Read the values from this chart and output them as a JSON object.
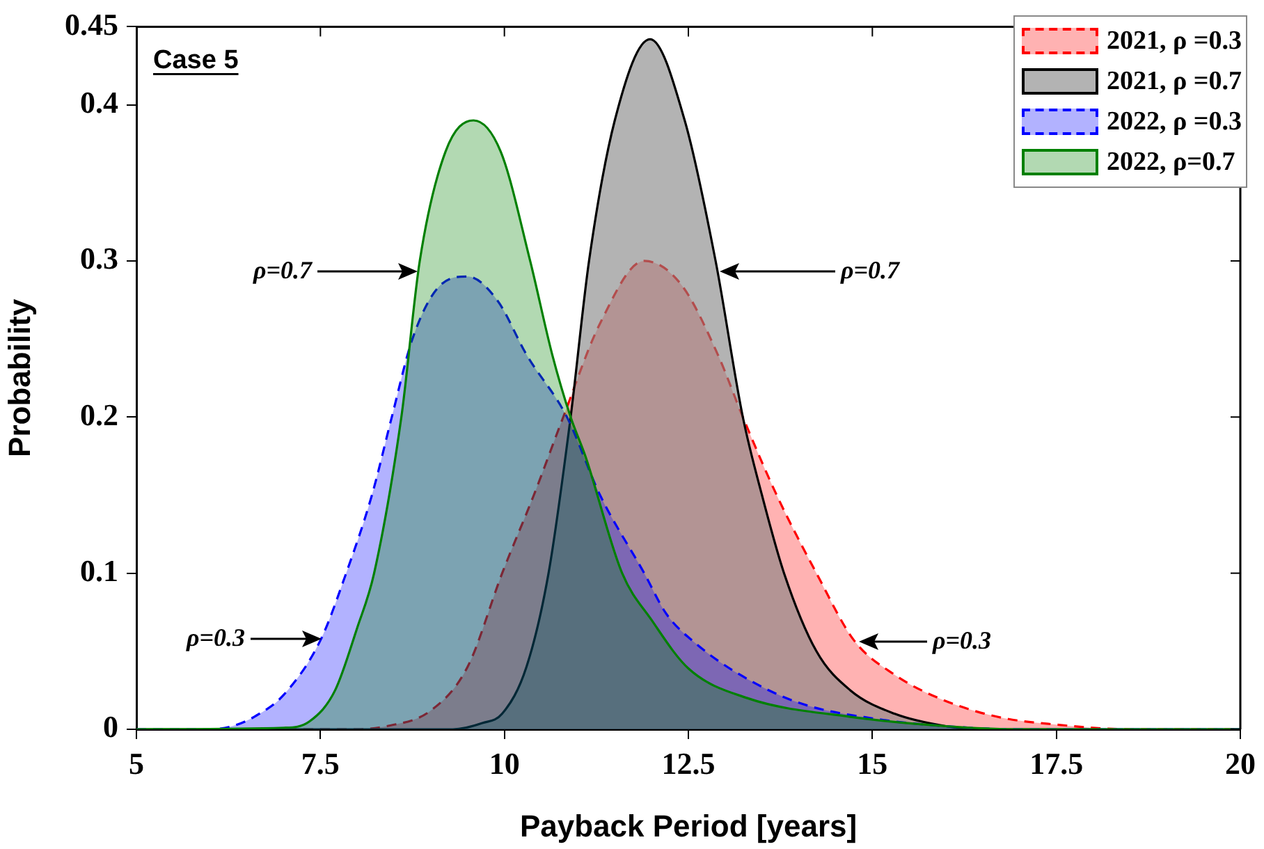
{
  "chart_data": {
    "type": "area",
    "xlabel": "Payback Period [years]",
    "ylabel": "Probability",
    "xlim": [
      5,
      20
    ],
    "xticks": [
      5,
      7.5,
      10,
      12.5,
      15,
      17.5,
      20
    ],
    "ylim": [
      0,
      0.45
    ],
    "yticks": [
      0,
      0.1,
      0.2,
      0.3,
      0.4,
      0.45
    ],
    "legend": "top right",
    "grid": false,
    "series": [
      {
        "name": "2021, ρ =0.3",
        "color": "#ff0000",
        "line_style": "dashed",
        "x": [
          5,
          8,
          8.4,
          9,
          9.5,
          9.97,
          10.4,
          10.8,
          11.3,
          11.9,
          12.4,
          12.9,
          13.24,
          13.7,
          14.24,
          14.75,
          15.3,
          15.9,
          16.7,
          17.5,
          18.5,
          20
        ],
        "values": [
          0,
          0,
          0.002,
          0.012,
          0.04,
          0.1,
          0.15,
          0.2,
          0.26,
          0.3,
          0.285,
          0.24,
          0.2,
          0.15,
          0.1,
          0.057,
          0.035,
          0.02,
          0.008,
          0.003,
          0,
          0
        ]
      },
      {
        "name": "2021, ρ =0.7",
        "color": "#000000",
        "line_style": "solid",
        "x": [
          5,
          9.3,
          9.7,
          9.97,
          10.3,
          10.6,
          10.9,
          11.15,
          11.5,
          11.98,
          12.45,
          12.87,
          13.24,
          13.5,
          13.8,
          14.24,
          14.7,
          15.3,
          16,
          16.5,
          20
        ],
        "values": [
          0,
          0,
          0.004,
          0.01,
          0.04,
          0.1,
          0.2,
          0.3,
          0.39,
          0.442,
          0.39,
          0.3,
          0.2,
          0.15,
          0.1,
          0.05,
          0.025,
          0.01,
          0.002,
          0,
          0
        ]
      },
      {
        "name": "2022, ρ =0.3",
        "color": "#0000ff",
        "line_style": "dashed",
        "x": [
          5,
          6,
          6.3,
          6.6,
          7,
          7.5,
          7.85,
          8.2,
          8.47,
          8.75,
          9.1,
          9.5,
          9.9,
          10.3,
          10.85,
          11.3,
          11.9,
          12.2,
          12.6,
          13.2,
          14,
          15,
          16,
          17,
          20
        ],
        "values": [
          0,
          0,
          0.002,
          0.008,
          0.022,
          0.057,
          0.1,
          0.15,
          0.2,
          0.25,
          0.283,
          0.29,
          0.275,
          0.24,
          0.2,
          0.15,
          0.1,
          0.074,
          0.055,
          0.035,
          0.017,
          0.007,
          0.002,
          0,
          0
        ]
      },
      {
        "name": "2022, ρ=0.7",
        "color": "#008000",
        "line_style": "solid",
        "x": [
          5,
          7,
          7.35,
          7.7,
          8,
          8.23,
          8.6,
          8.85,
          9.2,
          9.58,
          9.95,
          10.35,
          10.65,
          10.9,
          11.1,
          11.6,
          12,
          12.5,
          13.3,
          14.7,
          16,
          17,
          20
        ],
        "values": [
          0,
          0.001,
          0.005,
          0.025,
          0.065,
          0.1,
          0.2,
          0.3,
          0.37,
          0.39,
          0.37,
          0.3,
          0.24,
          0.2,
          0.175,
          0.1,
          0.07,
          0.039,
          0.02,
          0.008,
          0.002,
          0,
          0
        ]
      }
    ],
    "annotations": [
      "Case 5",
      "ρ=0.7",
      "ρ=0.7",
      "ρ=0.3",
      "ρ=0.3"
    ]
  }
}
